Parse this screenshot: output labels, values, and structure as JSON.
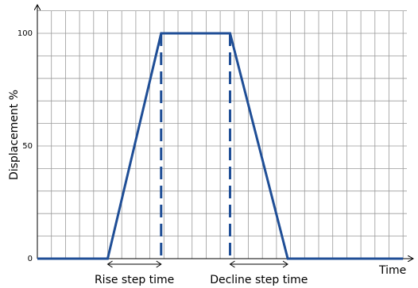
{
  "chart_data": {
    "type": "line",
    "title": "",
    "xlabel": "Time",
    "ylabel": "Displacement %",
    "ylim": [
      0,
      110
    ],
    "xlim": [
      0,
      26
    ],
    "grid": true,
    "y_ticks": [
      {
        "value": 0,
        "label": "0"
      },
      {
        "value": 50,
        "label": "50"
      },
      {
        "value": 100,
        "label": "100"
      }
    ],
    "series": [
      {
        "color": "#1f4e96",
        "x": [
          0,
          5,
          8.8,
          13.7,
          17.8,
          26
        ],
        "y": [
          0,
          0,
          100,
          100,
          0,
          0
        ]
      }
    ],
    "markers": [
      {
        "x": 8.8,
        "style": "dashed",
        "color": "#1f4e96"
      },
      {
        "x": 13.7,
        "style": "dashed",
        "color": "#1f4e96"
      }
    ],
    "annotations": [
      {
        "label": "Rise step time",
        "x_start": 5,
        "x_end": 8.8
      },
      {
        "label": "Decline step time",
        "x_start": 13.7,
        "x_end": 17.8
      }
    ]
  }
}
